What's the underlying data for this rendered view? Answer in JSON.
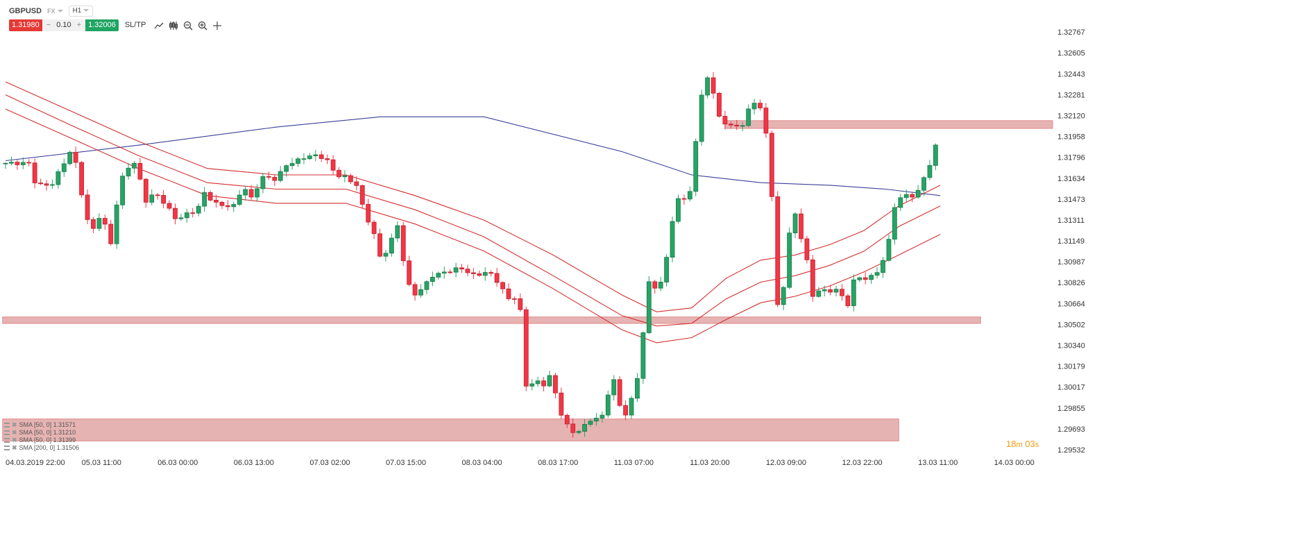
{
  "header": {
    "symbol": "GBPUSD",
    "market": "FX",
    "timeframe": "H1",
    "sell_price": "1.31980",
    "volume": "0.10",
    "volume_minus": "−",
    "volume_plus": "+",
    "buy_price": "1.32006",
    "sltp_label": "SL/TP",
    "tools": [
      "line-chart-icon",
      "candle-type-icon",
      "zoom-out-icon",
      "zoom-in-icon",
      "crosshair-icon"
    ]
  },
  "colors": {
    "bull": "#26a465",
    "bear": "#f23645",
    "sma200": "#3a3f9a",
    "sma50": "#d32f2f",
    "zone": "#e0a0a0",
    "timer": "#f39c12"
  },
  "legend": [
    {
      "label": "SMA [50, 0] 1.31571"
    },
    {
      "label": "SMA [50, 0] 1.31210"
    },
    {
      "label": "SMA [50, 0] 1.31399"
    },
    {
      "label": "SMA [200, 0] 1.31506"
    }
  ],
  "timer": {
    "minutes": "18",
    "m": "m",
    "seconds": "03",
    "s": "s"
  },
  "chart_data": {
    "type": "candlestick",
    "ylim": [
      1.29532,
      1.32767
    ],
    "y_ticks": [
      "1.32767",
      "1.32605",
      "1.32443",
      "1.32281",
      "1.32120",
      "1.31958",
      "1.31796",
      "1.31634",
      "1.31473",
      "1.31311",
      "1.31149",
      "1.30987",
      "1.30826",
      "1.30664",
      "1.30502",
      "1.30340",
      "1.30179",
      "1.30017",
      "1.29855",
      "1.29693",
      "1.29532"
    ],
    "x_ticks": [
      {
        "i": 0,
        "label": "04.03.2019 22:00"
      },
      {
        "i": 13,
        "label": "05.03 11:00"
      },
      {
        "i": 26,
        "label": "06.03 00:00"
      },
      {
        "i": 39,
        "label": "06.03 13:00"
      },
      {
        "i": 52,
        "label": "07.03 02:00"
      },
      {
        "i": 65,
        "label": "07.03 15:00"
      },
      {
        "i": 78,
        "label": "08.03 04:00"
      },
      {
        "i": 91,
        "label": "08.03 17:00"
      },
      {
        "i": 104,
        "label": "11.03 07:00"
      },
      {
        "i": 117,
        "label": "11.03 20:00"
      },
      {
        "i": 130,
        "label": "12.03 09:00"
      },
      {
        "i": 143,
        "label": "12.03 22:00"
      },
      {
        "i": 156,
        "label": "13.03 11:00"
      },
      {
        "i": 169,
        "label": "14.03 00:00"
      }
    ],
    "candle_count": 160,
    "close_keypoints": [
      [
        0,
        1.3175
      ],
      [
        5,
        1.3175
      ],
      [
        5.6,
        1.3158
      ],
      [
        6.7,
        1.3158
      ],
      [
        8.5,
        1.3159
      ],
      [
        10.9,
        1.3179
      ],
      [
        12,
        1.3187
      ],
      [
        13.2,
        1.3158
      ],
      [
        15,
        1.312
      ],
      [
        16.8,
        1.3136
      ],
      [
        18.6,
        1.3112
      ],
      [
        19.7,
        1.315
      ],
      [
        20.9,
        1.3171
      ],
      [
        22.7,
        1.3175
      ],
      [
        24.5,
        1.3146
      ],
      [
        26.2,
        1.3152
      ],
      [
        28,
        1.3142
      ],
      [
        29.8,
        1.3131
      ],
      [
        31.6,
        1.3136
      ],
      [
        33.3,
        1.3139
      ],
      [
        34.5,
        1.3152
      ],
      [
        36.3,
        1.3144
      ],
      [
        38,
        1.3142
      ],
      [
        39.8,
        1.3142
      ],
      [
        41,
        1.3158
      ],
      [
        42.8,
        1.3146
      ],
      [
        44,
        1.3164
      ],
      [
        45.7,
        1.3164
      ],
      [
        46.9,
        1.3162
      ],
      [
        48.1,
        1.3173
      ],
      [
        49.9,
        1.3176
      ],
      [
        51.7,
        1.318
      ],
      [
        53.4,
        1.3181
      ],
      [
        55.2,
        1.3179
      ],
      [
        57,
        1.3166
      ],
      [
        58.7,
        1.3164
      ],
      [
        60.5,
        1.3158
      ],
      [
        61.7,
        1.3139
      ],
      [
        63.5,
        1.312
      ],
      [
        64.7,
        1.3099
      ],
      [
        66.4,
        1.3115
      ],
      [
        67.6,
        1.3128
      ],
      [
        68.8,
        1.3091
      ],
      [
        70,
        1.3072
      ],
      [
        71.7,
        1.3078
      ],
      [
        73.5,
        1.3088
      ],
      [
        75.9,
        1.3091
      ],
      [
        78.3,
        1.3094
      ],
      [
        80.6,
        1.3088
      ],
      [
        83,
        1.3091
      ],
      [
        84.2,
        1.3086
      ],
      [
        86.5,
        1.307
      ],
      [
        88.3,
        1.3072
      ],
      [
        89.5,
        1.3003
      ],
      [
        91.3,
        1.3006
      ],
      [
        92.4,
        1.3003
      ],
      [
        93.6,
        1.3011
      ],
      [
        95.4,
        1.2982
      ],
      [
        97.2,
        1.2966
      ],
      [
        98.9,
        1.2969
      ],
      [
        100.7,
        1.2977
      ],
      [
        102.5,
        1.2979
      ],
      [
        104.3,
        1.3011
      ],
      [
        106,
        1.2977
      ],
      [
        107.2,
        1.2987
      ],
      [
        109,
        1.3017
      ],
      [
        110.2,
        1.3083
      ],
      [
        111.9,
        1.3078
      ],
      [
        113.1,
        1.3088
      ],
      [
        114.3,
        1.3128
      ],
      [
        115.5,
        1.3147
      ],
      [
        117.3,
        1.3147
      ],
      [
        118.4,
        1.3187
      ],
      [
        119.6,
        1.3232
      ],
      [
        120.8,
        1.3245
      ],
      [
        122,
        1.3216
      ],
      [
        123.8,
        1.3203
      ],
      [
        125.5,
        1.3205
      ],
      [
        126.7,
        1.3203
      ],
      [
        127.9,
        1.3224
      ],
      [
        129.1,
        1.3221
      ],
      [
        130.3,
        1.3208
      ],
      [
        131.4,
        1.3158
      ],
      [
        132.6,
        1.3056
      ],
      [
        133.8,
        1.3088
      ],
      [
        135,
        1.3144
      ],
      [
        136.2,
        1.3123
      ],
      [
        137.4,
        1.3102
      ],
      [
        138.5,
        1.3072
      ],
      [
        139.7,
        1.3078
      ],
      [
        140.9,
        1.3075
      ],
      [
        142.7,
        1.3078
      ],
      [
        144.4,
        1.3064
      ],
      [
        145.6,
        1.3086
      ],
      [
        147.4,
        1.3086
      ],
      [
        149.2,
        1.3088
      ],
      [
        150.4,
        1.3099
      ],
      [
        151.5,
        1.3115
      ],
      [
        152.7,
        1.3147
      ],
      [
        154.5,
        1.315
      ],
      [
        155.7,
        1.315
      ],
      [
        156.9,
        1.3155
      ],
      [
        158,
        1.3171
      ],
      [
        159.2,
        1.3179
      ],
      [
        159.8,
        1.3197
      ]
    ],
    "series": [
      {
        "name": "SMA [200, 0]",
        "color": "sma200",
        "points": [
          [
            0,
            1.3177
          ],
          [
            22.7,
            1.3189
          ],
          [
            46.3,
            1.3203
          ],
          [
            64.1,
            1.3211
          ],
          [
            81.8,
            1.3211
          ],
          [
            105.4,
            1.3184
          ],
          [
            117.3,
            1.3166
          ],
          [
            129.1,
            1.316
          ],
          [
            140.9,
            1.3158
          ],
          [
            150.4,
            1.3155
          ],
          [
            159.8,
            1.315
          ]
        ]
      },
      {
        "name": "SMA [50, 0] a",
        "color": "sma50",
        "points": [
          [
            0,
            1.3238
          ],
          [
            10.9,
            1.3216
          ],
          [
            22.7,
            1.3192
          ],
          [
            34.5,
            1.3171
          ],
          [
            46.3,
            1.3166
          ],
          [
            58.2,
            1.3166
          ],
          [
            70,
            1.315
          ],
          [
            81.8,
            1.3131
          ],
          [
            93.6,
            1.3104
          ],
          [
            105.4,
            1.3073
          ],
          [
            111.3,
            1.306
          ],
          [
            117.3,
            1.3063
          ],
          [
            123.2,
            1.3086
          ],
          [
            129.1,
            1.31
          ],
          [
            135,
            1.3104
          ],
          [
            140.9,
            1.3112
          ],
          [
            146.8,
            1.3123
          ],
          [
            152.7,
            1.3142
          ],
          [
            159.8,
            1.3158
          ]
        ]
      },
      {
        "name": "SMA [50, 0] b",
        "color": "sma50",
        "points": [
          [
            0,
            1.3228
          ],
          [
            10.9,
            1.3205
          ],
          [
            22.7,
            1.3181
          ],
          [
            34.5,
            1.316
          ],
          [
            46.3,
            1.3155
          ],
          [
            58.2,
            1.3155
          ],
          [
            70,
            1.3139
          ],
          [
            81.8,
            1.3118
          ],
          [
            93.6,
            1.3088
          ],
          [
            105.4,
            1.3057
          ],
          [
            111.3,
            1.3049
          ],
          [
            117.3,
            1.3051
          ],
          [
            123.2,
            1.307
          ],
          [
            129.1,
            1.3083
          ],
          [
            135,
            1.3088
          ],
          [
            140.9,
            1.3096
          ],
          [
            146.8,
            1.3107
          ],
          [
            152.7,
            1.3126
          ],
          [
            159.8,
            1.3142
          ]
        ]
      },
      {
        "name": "SMA [50, 0] c",
        "color": "sma50",
        "points": [
          [
            0,
            1.3217
          ],
          [
            10.9,
            1.3195
          ],
          [
            22.7,
            1.3171
          ],
          [
            34.5,
            1.315
          ],
          [
            46.3,
            1.3144
          ],
          [
            58.2,
            1.3144
          ],
          [
            70,
            1.3128
          ],
          [
            81.8,
            1.3107
          ],
          [
            93.6,
            1.3078
          ],
          [
            105.4,
            1.3046
          ],
          [
            111.3,
            1.3036
          ],
          [
            117.3,
            1.304
          ],
          [
            123.2,
            1.3054
          ],
          [
            129.1,
            1.3067
          ],
          [
            135,
            1.3072
          ],
          [
            140.9,
            1.308
          ],
          [
            146.8,
            1.3091
          ],
          [
            152.7,
            1.3104
          ],
          [
            159.8,
            1.312
          ]
        ]
      }
    ],
    "zones": [
      {
        "from_i": 123,
        "to_i": 179,
        "high": 1.3208,
        "low": 1.3202
      },
      {
        "from_i": -0.5,
        "to_i": 166.7,
        "high": 1.3056,
        "low": 1.3051
      },
      {
        "from_i": -0.5,
        "to_i": 152.7,
        "high": 1.2977,
        "low": 1.296
      }
    ]
  }
}
